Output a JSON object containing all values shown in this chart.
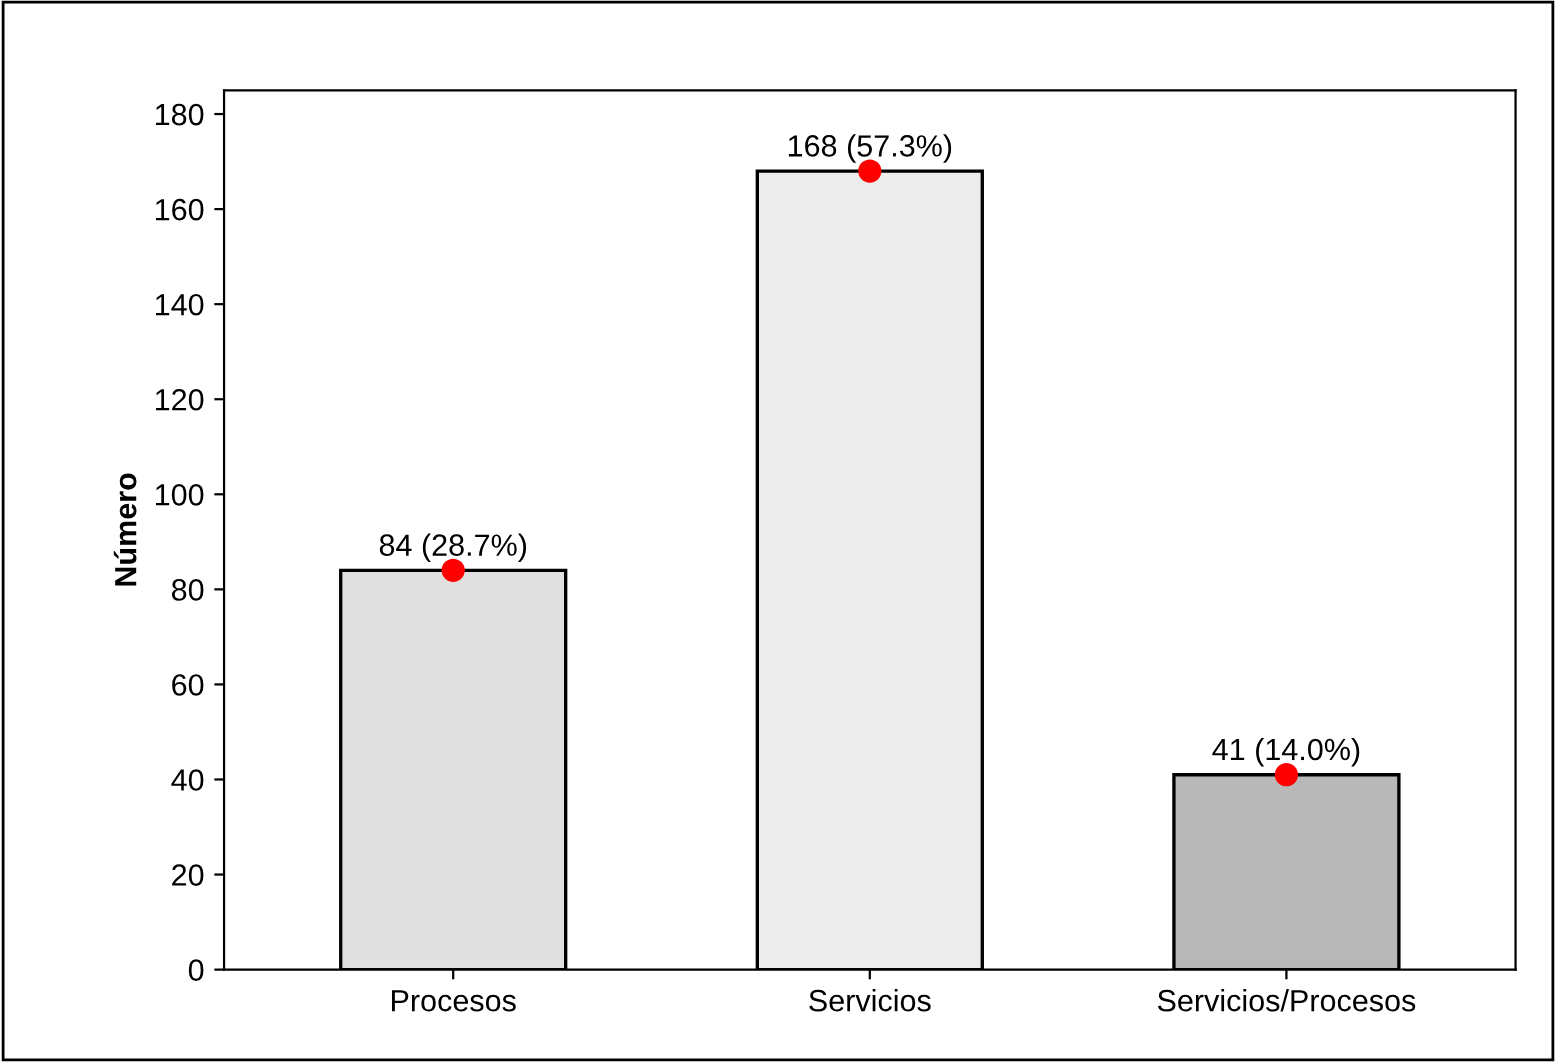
{
  "chart_data": {
    "type": "bar",
    "ylabel": "Número",
    "categories": [
      "Procesos",
      "Servicios",
      "Servicios/Procesos"
    ],
    "series": [
      {
        "type": "bar",
        "colors": [
          "#e0e0e0",
          "#ececec",
          "#b8b8b8"
        ],
        "values": [
          84,
          168,
          41
        ],
        "value_labels": [
          "84 (28.7%)",
          "168 (57.3%)",
          "41 (14.0%)"
        ]
      },
      {
        "type": "scatter",
        "color": "#ff0000",
        "x": [
          "Procesos",
          "Servicios",
          "Servicios/Procesos"
        ],
        "values": [
          84,
          168,
          41
        ],
        "marker": "circle"
      }
    ],
    "ylim": [
      0,
      185
    ],
    "yticks": [
      0,
      20,
      40,
      60,
      80,
      100,
      120,
      140,
      160,
      180
    ],
    "grid": false,
    "legend": false
  }
}
